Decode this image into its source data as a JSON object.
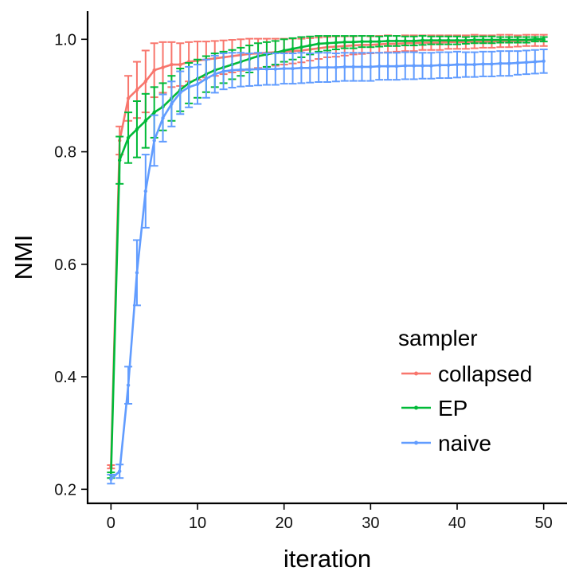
{
  "chart_data": {
    "type": "line",
    "title": "",
    "xlabel": "iteration",
    "ylabel": "NMI",
    "xlim": [
      -2.7,
      52.7
    ],
    "ylim": [
      0.175,
      1.05
    ],
    "xticks": [
      0,
      10,
      20,
      30,
      40,
      50
    ],
    "yticks": [
      0.2,
      0.4,
      0.6,
      0.8,
      1.0
    ],
    "xtick_labels": [
      "0",
      "10",
      "20",
      "30",
      "40",
      "50"
    ],
    "ytick_labels": [
      "0.2",
      "0.4",
      "0.6",
      "0.8",
      "1.0"
    ],
    "grid": false,
    "legend": {
      "title": "sampler",
      "position": "right-inside"
    },
    "series": [
      {
        "name": "collapsed",
        "color": "#F8766D",
        "x": [
          0,
          1,
          2,
          3,
          4,
          5,
          6,
          7,
          8,
          9,
          10,
          11,
          12,
          13,
          14,
          15,
          16,
          17,
          18,
          19,
          20,
          21,
          22,
          23,
          24,
          25,
          26,
          27,
          28,
          29,
          30,
          31,
          32,
          33,
          34,
          35,
          36,
          37,
          38,
          39,
          40,
          41,
          42,
          43,
          44,
          45,
          46,
          47,
          48,
          49,
          50
        ],
        "y": [
          0.24,
          0.82,
          0.895,
          0.91,
          0.925,
          0.945,
          0.95,
          0.955,
          0.955,
          0.96,
          0.962,
          0.964,
          0.966,
          0.968,
          0.97,
          0.972,
          0.974,
          0.975,
          0.976,
          0.977,
          0.978,
          0.979,
          0.98,
          0.982,
          0.984,
          0.986,
          0.987,
          0.988,
          0.989,
          0.99,
          0.99,
          0.991,
          0.992,
          0.992,
          0.993,
          0.993,
          0.994,
          0.994,
          0.994,
          0.995,
          0.995,
          0.995,
          0.996,
          0.996,
          0.996,
          0.997,
          0.997,
          0.997,
          0.998,
          0.998,
          0.998
        ],
        "error": [
          0.003,
          0.025,
          0.04,
          0.05,
          0.055,
          0.048,
          0.045,
          0.04,
          0.038,
          0.035,
          0.034,
          0.032,
          0.031,
          0.03,
          0.029,
          0.028,
          0.027,
          0.026,
          0.025,
          0.024,
          0.023,
          0.022,
          0.021,
          0.02,
          0.019,
          0.018,
          0.018,
          0.017,
          0.016,
          0.016,
          0.015,
          0.015,
          0.015,
          0.014,
          0.014,
          0.014,
          0.013,
          0.013,
          0.013,
          0.012,
          0.012,
          0.012,
          0.012,
          0.011,
          0.011,
          0.011,
          0.011,
          0.01,
          0.01,
          0.01,
          0.01
        ]
      },
      {
        "name": "EP",
        "color": "#00BA38",
        "x": [
          0,
          1,
          2,
          3,
          4,
          5,
          6,
          7,
          8,
          9,
          10,
          11,
          12,
          13,
          14,
          15,
          16,
          17,
          18,
          19,
          20,
          21,
          22,
          23,
          24,
          25,
          26,
          27,
          28,
          29,
          30,
          31,
          32,
          33,
          34,
          35,
          36,
          37,
          38,
          39,
          40,
          41,
          42,
          43,
          44,
          45,
          46,
          47,
          48,
          49,
          50
        ],
        "y": [
          0.225,
          0.785,
          0.825,
          0.84,
          0.855,
          0.87,
          0.88,
          0.895,
          0.91,
          0.922,
          0.93,
          0.938,
          0.945,
          0.95,
          0.955,
          0.96,
          0.965,
          0.97,
          0.973,
          0.976,
          0.98,
          0.983,
          0.986,
          0.989,
          0.992,
          0.993,
          0.994,
          0.995,
          0.995,
          0.996,
          0.996,
          0.996,
          0.997,
          0.997,
          0.997,
          0.997,
          0.998,
          0.998,
          0.998,
          0.998,
          0.998,
          0.998,
          0.999,
          0.999,
          0.999,
          0.999,
          0.999,
          0.999,
          0.999,
          1.0,
          1.0
        ],
        "error": [
          0.005,
          0.042,
          0.045,
          0.05,
          0.048,
          0.045,
          0.042,
          0.04,
          0.038,
          0.036,
          0.034,
          0.032,
          0.03,
          0.028,
          0.026,
          0.025,
          0.024,
          0.023,
          0.022,
          0.021,
          0.02,
          0.019,
          0.018,
          0.016,
          0.014,
          0.013,
          0.012,
          0.011,
          0.011,
          0.01,
          0.01,
          0.009,
          0.009,
          0.009,
          0.008,
          0.008,
          0.008,
          0.007,
          0.007,
          0.007,
          0.007,
          0.006,
          0.006,
          0.006,
          0.006,
          0.005,
          0.005,
          0.005,
          0.005,
          0.004,
          0.004
        ]
      },
      {
        "name": "naive",
        "color": "#619CFF",
        "x": [
          0,
          1,
          2,
          3,
          4,
          5,
          6,
          7,
          8,
          9,
          10,
          11,
          12,
          13,
          14,
          15,
          16,
          17,
          18,
          19,
          20,
          21,
          22,
          23,
          24,
          25,
          26,
          27,
          28,
          29,
          30,
          31,
          32,
          33,
          34,
          35,
          36,
          37,
          38,
          39,
          40,
          41,
          42,
          43,
          44,
          45,
          46,
          47,
          48,
          49,
          50
        ],
        "y": [
          0.218,
          0.232,
          0.385,
          0.585,
          0.73,
          0.82,
          0.86,
          0.885,
          0.905,
          0.915,
          0.92,
          0.93,
          0.938,
          0.943,
          0.945,
          0.946,
          0.946,
          0.947,
          0.947,
          0.947,
          0.948,
          0.948,
          0.949,
          0.949,
          0.95,
          0.95,
          0.95,
          0.951,
          0.951,
          0.951,
          0.951,
          0.952,
          0.952,
          0.952,
          0.953,
          0.953,
          0.953,
          0.953,
          0.954,
          0.954,
          0.955,
          0.955,
          0.955,
          0.956,
          0.956,
          0.957,
          0.957,
          0.958,
          0.959,
          0.96,
          0.961
        ],
        "error": [
          0.008,
          0.012,
          0.033,
          0.058,
          0.065,
          0.045,
          0.042,
          0.04,
          0.038,
          0.036,
          0.035,
          0.034,
          0.033,
          0.032,
          0.031,
          0.03,
          0.029,
          0.029,
          0.028,
          0.028,
          0.027,
          0.027,
          0.027,
          0.026,
          0.026,
          0.026,
          0.025,
          0.025,
          0.025,
          0.025,
          0.025,
          0.024,
          0.024,
          0.024,
          0.024,
          0.024,
          0.023,
          0.023,
          0.023,
          0.023,
          0.023,
          0.022,
          0.022,
          0.022,
          0.022,
          0.022,
          0.022,
          0.021,
          0.021,
          0.021,
          0.021
        ]
      }
    ]
  }
}
